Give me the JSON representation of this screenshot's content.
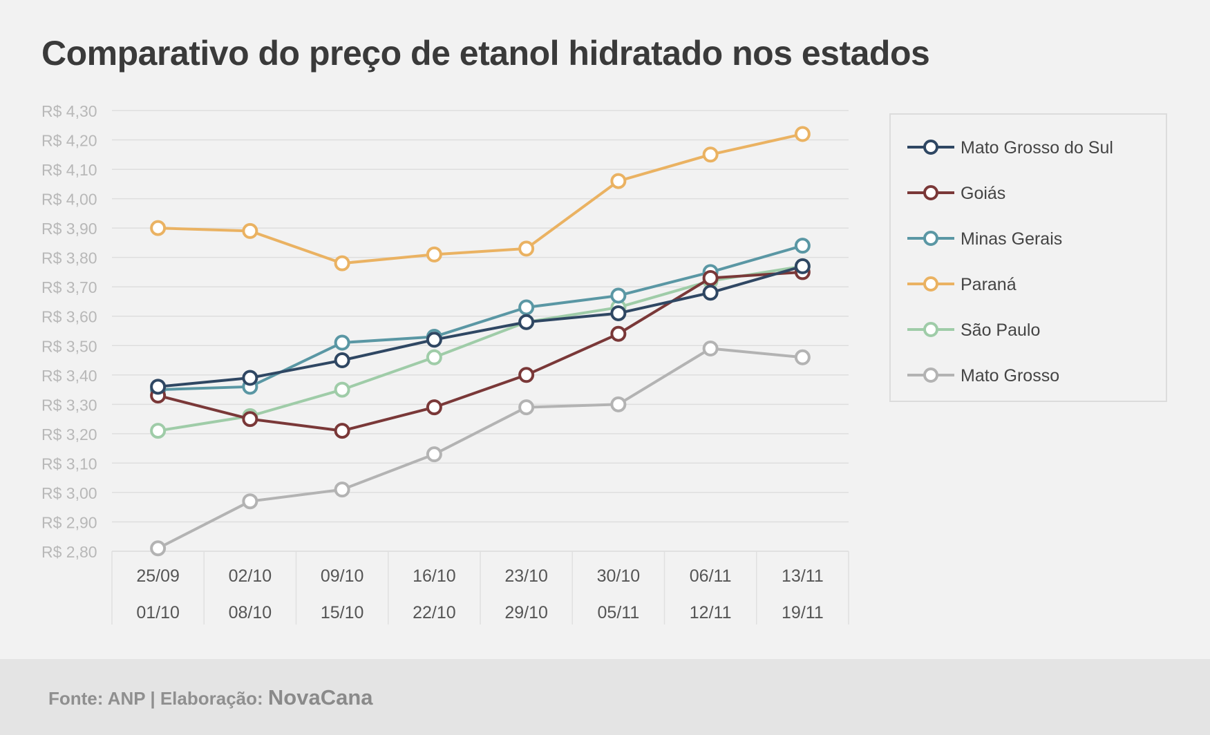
{
  "chart_data": {
    "type": "line",
    "title": "Comparativo do preço de etanol hidratado nos estados",
    "categories": [
      [
        "25/09",
        "01/10"
      ],
      [
        "02/10",
        "08/10"
      ],
      [
        "09/10",
        "15/10"
      ],
      [
        "16/10",
        "22/10"
      ],
      [
        "23/10",
        "29/10"
      ],
      [
        "30/10",
        "05/11"
      ],
      [
        "06/11",
        "12/11"
      ],
      [
        "13/11",
        "19/11"
      ]
    ],
    "yticks": [
      "R$ 4,30",
      "R$ 4,20",
      "R$ 4,10",
      "R$ 4,00",
      "R$ 3,90",
      "R$ 3,80",
      "R$ 3,70",
      "R$ 3,60",
      "R$ 3,50",
      "R$ 3,40",
      "R$ 3,30",
      "R$ 3,20",
      "R$ 3,10",
      "R$ 3,00",
      "R$ 2,90",
      "R$ 2,80"
    ],
    "ylim": [
      2.8,
      4.3
    ],
    "grid": true,
    "legend_position": "right",
    "series": [
      {
        "name": "São Paulo",
        "color": "#9fcca8",
        "values": [
          3.21,
          3.26,
          3.35,
          3.46,
          3.58,
          3.63,
          3.72,
          3.77
        ]
      },
      {
        "name": "Mato Grosso",
        "color": "#b3b3b3",
        "values": [
          2.81,
          2.97,
          3.01,
          3.13,
          3.29,
          3.3,
          3.49,
          3.46
        ]
      },
      {
        "name": "Paraná",
        "color": "#eab262",
        "values": [
          3.9,
          3.89,
          3.78,
          3.81,
          3.83,
          4.06,
          4.15,
          4.22
        ]
      },
      {
        "name": "Minas Gerais",
        "color": "#5a97a4",
        "values": [
          3.35,
          3.36,
          3.51,
          3.53,
          3.63,
          3.67,
          3.75,
          3.84
        ]
      },
      {
        "name": "Goiás",
        "color": "#7a3838",
        "values": [
          3.33,
          3.25,
          3.21,
          3.29,
          3.4,
          3.54,
          3.73,
          3.75
        ]
      },
      {
        "name": "Mato Grosso do Sul",
        "color": "#2f4763",
        "values": [
          3.36,
          3.39,
          3.45,
          3.52,
          3.58,
          3.61,
          3.68,
          3.77
        ]
      }
    ],
    "legend_order": [
      "Mato Grosso do Sul",
      "Goiás",
      "Minas Gerais",
      "Paraná",
      "São Paulo",
      "Mato Grosso"
    ]
  },
  "footer": {
    "source_label": "Fonte: ANP | Elaboração:",
    "brand": "NovaCana"
  }
}
